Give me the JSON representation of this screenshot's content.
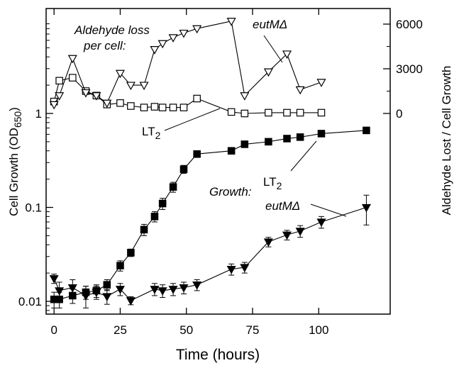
{
  "chart_data": {
    "type": "line",
    "xlabel": "Time (hours)",
    "ylabel_left": "Cell Growth (OD650)",
    "ylabel_left_main": "Cell Growth (OD",
    "ylabel_left_sub": "650",
    "ylabel_left_close": ")",
    "ylabel_right": "Aldehyde Lost / Cell Growth",
    "xlim": [
      -3,
      127
    ],
    "x_ticks": [
      0,
      25,
      50,
      75,
      100
    ],
    "x_tick_labels": [
      "0",
      "25",
      "50",
      "75",
      "100"
    ],
    "y_left_scale": "log",
    "y_left_ticks": [
      0.01,
      0.1,
      1
    ],
    "y_left_tick_labels": [
      "0.01",
      "0.1",
      "1"
    ],
    "y_right_ticks": [
      0,
      3000,
      6000
    ],
    "y_right_tick_labels": [
      "0",
      "3000",
      "6000"
    ],
    "grid": false,
    "annotations": {
      "aldehyde_loss_line1": "Aldehyde loss",
      "aldehyde_loss_line2": "per cell:",
      "growth": "Growth:",
      "lt2_main": "LT",
      "lt2_sub": "2",
      "eutm": "eutMΔ"
    },
    "series": [
      {
        "marker": "filled-square",
        "axis": "left",
        "x": [
          0,
          2,
          7,
          12,
          16,
          20,
          25,
          29,
          34,
          38,
          41,
          45,
          49,
          54,
          67,
          72,
          81,
          88,
          93,
          101,
          118
        ],
        "y": [
          0.0105,
          0.0105,
          0.0115,
          0.0125,
          0.013,
          0.015,
          0.024,
          0.033,
          0.058,
          0.08,
          0.11,
          0.165,
          0.255,
          0.37,
          0.4,
          0.47,
          0.5,
          0.54,
          0.56,
          0.61,
          0.66
        ],
        "err": [
          0.002,
          0.002,
          0.002,
          0.002,
          0.002,
          0.002,
          0.003,
          0.003,
          0.008,
          0.01,
          0.015,
          0.02,
          0.025,
          0.03,
          0.03,
          0.03,
          0.03,
          0.03,
          0.03,
          0.03,
          0.05
        ]
      },
      {
        "marker": "filled-triangle-down",
        "axis": "left",
        "x": [
          0,
          2,
          7,
          12,
          16,
          20,
          25,
          29,
          38,
          41,
          45,
          49,
          54,
          67,
          72,
          81,
          88,
          93,
          101,
          118
        ],
        "y": [
          0.0175,
          0.013,
          0.014,
          0.0115,
          0.0125,
          0.0113,
          0.0135,
          0.0102,
          0.0135,
          0.013,
          0.0135,
          0.014,
          0.015,
          0.022,
          0.023,
          0.043,
          0.051,
          0.056,
          0.07,
          0.1
        ],
        "err": [
          0.002,
          0.003,
          0.003,
          0.003,
          0.002,
          0.002,
          0.002,
          0.001,
          0.002,
          0.002,
          0.002,
          0.002,
          0.002,
          0.003,
          0.003,
          0.005,
          0.006,
          0.008,
          0.01,
          0.035
        ]
      },
      {
        "marker": "open-square",
        "axis": "right",
        "x": [
          0,
          2,
          7,
          12,
          16,
          20,
          25,
          29,
          34,
          38,
          41,
          45,
          49,
          54,
          67,
          72,
          81,
          88,
          93,
          101
        ],
        "y": [
          800,
          2200,
          2400,
          1500,
          1200,
          600,
          700,
          500,
          400,
          450,
          400,
          400,
          400,
          1000,
          100,
          0,
          50,
          50,
          50,
          50
        ]
      },
      {
        "marker": "open-triangle-down",
        "axis": "right",
        "x": [
          0,
          2,
          7,
          12,
          16,
          20,
          25,
          29,
          34,
          38,
          41,
          45,
          49,
          54,
          67,
          72,
          81,
          88,
          93,
          101
        ],
        "y": [
          600,
          1200,
          3700,
          1400,
          1200,
          700,
          2700,
          1900,
          1900,
          4300,
          4700,
          5100,
          5400,
          5700,
          6200,
          1200,
          2800,
          4000,
          1600,
          2100
        ]
      }
    ]
  }
}
